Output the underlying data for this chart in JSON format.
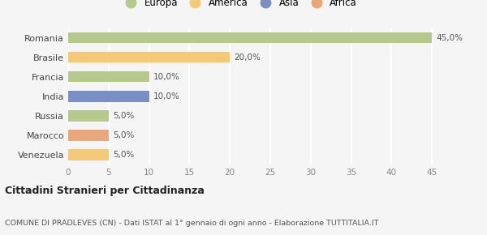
{
  "categories": [
    "Romania",
    "Brasile",
    "Francia",
    "India",
    "Russia",
    "Marocco",
    "Venezuela"
  ],
  "values": [
    45.0,
    20.0,
    10.0,
    10.0,
    5.0,
    5.0,
    5.0
  ],
  "colors": [
    "#b5c98e",
    "#f5c97a",
    "#b5c98e",
    "#7a8fc4",
    "#b5c98e",
    "#e8a87c",
    "#f5c97a"
  ],
  "labels": [
    "45,0%",
    "20,0%",
    "10,0%",
    "10,0%",
    "5,0%",
    "5,0%",
    "5,0%"
  ],
  "legend_items": [
    {
      "label": "Europa",
      "color": "#b5c98e"
    },
    {
      "label": "America",
      "color": "#f5c97a"
    },
    {
      "label": "Asia",
      "color": "#7a8fc4"
    },
    {
      "label": "Africa",
      "color": "#e8a87c"
    }
  ],
  "xlim": [
    0,
    47
  ],
  "xticks": [
    0,
    5,
    10,
    15,
    20,
    25,
    30,
    35,
    40,
    45
  ],
  "title": "Cittadini Stranieri per Cittadinanza",
  "subtitle": "COMUNE DI PRADLEVES (CN) - Dati ISTAT al 1° gennaio di ogni anno - Elaborazione TUTTITALIA.IT",
  "background_color": "#f5f5f5",
  "grid_color": "#ffffff",
  "bar_height": 0.55
}
